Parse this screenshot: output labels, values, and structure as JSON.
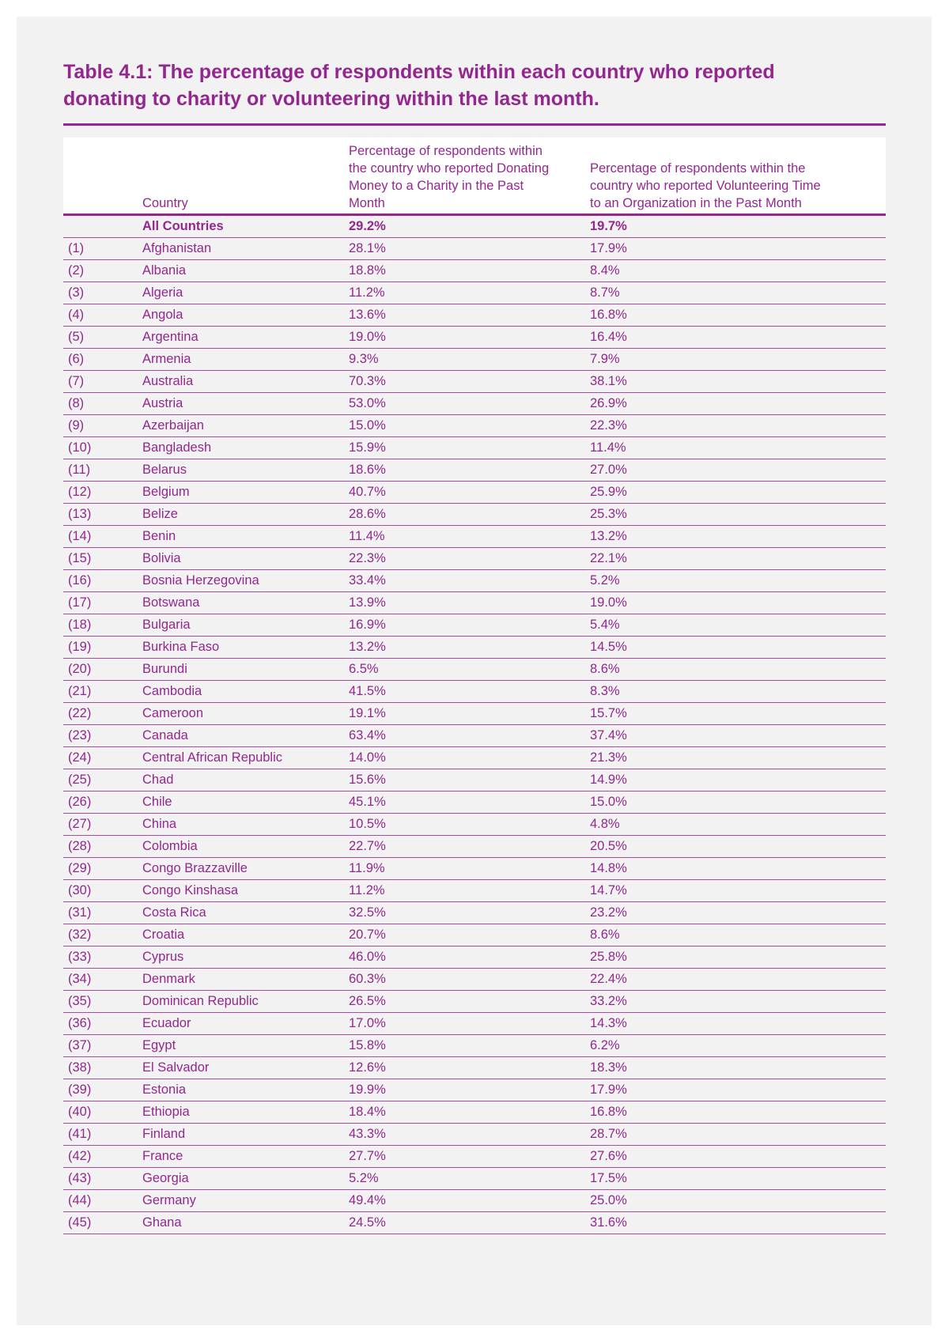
{
  "title": "Table 4.1: The percentage of respondents within each country who reported donating to charity or volunteering within the last month.",
  "colors": {
    "accent": "#93278f",
    "background": "#f2f2f2"
  },
  "headers": {
    "index": "",
    "country": "Country",
    "donating": "Percentage of respondents within the country who reported Donating Money to a Charity in the Past Month",
    "volunteering": "Percentage of respondents within the country who reported Volunteering Time to an Organization in the Past Month"
  },
  "all_countries": {
    "country": "All Countries",
    "donating": "29.2%",
    "volunteering": "19.7%"
  },
  "rows": [
    [
      "(1)",
      "Afghanistan",
      "28.1%",
      "17.9%"
    ],
    [
      "(2)",
      "Albania",
      "18.8%",
      "8.4%"
    ],
    [
      "(3)",
      "Algeria",
      "11.2%",
      "8.7%"
    ],
    [
      "(4)",
      "Angola",
      "13.6%",
      "16.8%"
    ],
    [
      "(5)",
      "Argentina",
      "19.0%",
      "16.4%"
    ],
    [
      "(6)",
      "Armenia",
      "9.3%",
      "7.9%"
    ],
    [
      "(7)",
      "Australia",
      "70.3%",
      "38.1%"
    ],
    [
      "(8)",
      "Austria",
      "53.0%",
      "26.9%"
    ],
    [
      "(9)",
      "Azerbaijan",
      "15.0%",
      "22.3%"
    ],
    [
      "(10)",
      "Bangladesh",
      "15.9%",
      "11.4%"
    ],
    [
      "(11)",
      "Belarus",
      "18.6%",
      "27.0%"
    ],
    [
      "(12)",
      "Belgium",
      "40.7%",
      "25.9%"
    ],
    [
      "(13)",
      "Belize",
      "28.6%",
      "25.3%"
    ],
    [
      "(14)",
      "Benin",
      "11.4%",
      "13.2%"
    ],
    [
      "(15)",
      "Bolivia",
      "22.3%",
      "22.1%"
    ],
    [
      "(16)",
      "Bosnia Herzegovina",
      "33.4%",
      "5.2%"
    ],
    [
      "(17)",
      "Botswana",
      "13.9%",
      "19.0%"
    ],
    [
      "(18)",
      "Bulgaria",
      "16.9%",
      "5.4%"
    ],
    [
      "(19)",
      "Burkina Faso",
      "13.2%",
      "14.5%"
    ],
    [
      "(20)",
      "Burundi",
      "6.5%",
      "8.6%"
    ],
    [
      "(21)",
      "Cambodia",
      "41.5%",
      "8.3%"
    ],
    [
      "(22)",
      "Cameroon",
      "19.1%",
      "15.7%"
    ],
    [
      "(23)",
      "Canada",
      "63.4%",
      "37.4%"
    ],
    [
      "(24)",
      "Central African Republic",
      "14.0%",
      "21.3%"
    ],
    [
      "(25)",
      "Chad",
      "15.6%",
      "14.9%"
    ],
    [
      "(26)",
      "Chile",
      "45.1%",
      "15.0%"
    ],
    [
      "(27)",
      "China",
      "10.5%",
      "4.8%"
    ],
    [
      "(28)",
      "Colombia",
      "22.7%",
      "20.5%"
    ],
    [
      "(29)",
      "Congo Brazzaville",
      "11.9%",
      "14.8%"
    ],
    [
      "(30)",
      "Congo Kinshasa",
      "11.2%",
      "14.7%"
    ],
    [
      "(31)",
      "Costa Rica",
      "32.5%",
      "23.2%"
    ],
    [
      "(32)",
      "Croatia",
      "20.7%",
      "8.6%"
    ],
    [
      "(33)",
      "Cyprus",
      "46.0%",
      "25.8%"
    ],
    [
      "(34)",
      "Denmark",
      "60.3%",
      "22.4%"
    ],
    [
      "(35)",
      "Dominican Republic",
      "26.5%",
      "33.2%"
    ],
    [
      "(36)",
      "Ecuador",
      "17.0%",
      "14.3%"
    ],
    [
      "(37)",
      "Egypt",
      "15.8%",
      "6.2%"
    ],
    [
      "(38)",
      "El Salvador",
      "12.6%",
      "18.3%"
    ],
    [
      "(39)",
      "Estonia",
      "19.9%",
      "17.9%"
    ],
    [
      "(40)",
      "Ethiopia",
      "18.4%",
      "16.8%"
    ],
    [
      "(41)",
      "Finland",
      "43.3%",
      "28.7%"
    ],
    [
      "(42)",
      "France",
      "27.7%",
      "27.6%"
    ],
    [
      "(43)",
      "Georgia",
      "5.2%",
      "17.5%"
    ],
    [
      "(44)",
      "Germany",
      "49.4%",
      "25.0%"
    ],
    [
      "(45)",
      "Ghana",
      "24.5%",
      "31.6%"
    ]
  ]
}
